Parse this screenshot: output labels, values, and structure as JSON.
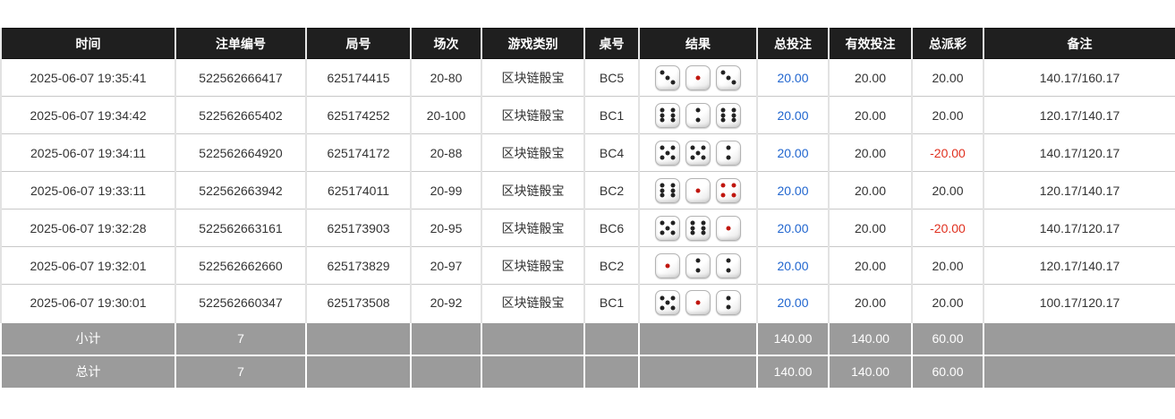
{
  "colors": {
    "header_bg": "#1f1f1f",
    "header_text": "#ffffff",
    "row_text": "#333333",
    "bet_total_link": "#2166cf",
    "negative_value": "#e0301f",
    "summary_bg": "#9b9b9b",
    "summary_text": "#ffffff",
    "dice_pip_black": "#222222",
    "dice_pip_red": "#c0170f"
  },
  "table": {
    "columns": [
      {
        "key": "time",
        "label": "时间"
      },
      {
        "key": "bet_id",
        "label": "注单编号"
      },
      {
        "key": "round_id",
        "label": "局号"
      },
      {
        "key": "session",
        "label": "场次"
      },
      {
        "key": "game_type",
        "label": "游戏类别"
      },
      {
        "key": "table_no",
        "label": "桌号"
      },
      {
        "key": "result",
        "label": "结果"
      },
      {
        "key": "bet_total",
        "label": "总投注"
      },
      {
        "key": "valid_bet",
        "label": "有效投注"
      },
      {
        "key": "payout_total",
        "label": "总派彩"
      },
      {
        "key": "remark",
        "label": "备注"
      }
    ],
    "rows": [
      {
        "time": "2025-06-07 19:35:41",
        "bet_id": "522562666417",
        "round_id": "625174415",
        "session": "20-80",
        "game_type": "区块链骰宝",
        "table_no": "BC5",
        "result": [
          3,
          1,
          3
        ],
        "bet_total": "20.00",
        "valid_bet": "20.00",
        "payout_total": "20.00",
        "remark": "140.17/160.17"
      },
      {
        "time": "2025-06-07 19:34:42",
        "bet_id": "522562665402",
        "round_id": "625174252",
        "session": "20-100",
        "game_type": "区块链骰宝",
        "table_no": "BC1",
        "result": [
          6,
          2,
          6
        ],
        "bet_total": "20.00",
        "valid_bet": "20.00",
        "payout_total": "20.00",
        "remark": "120.17/140.17"
      },
      {
        "time": "2025-06-07 19:34:11",
        "bet_id": "522562664920",
        "round_id": "625174172",
        "session": "20-88",
        "game_type": "区块链骰宝",
        "table_no": "BC4",
        "result": [
          5,
          5,
          2
        ],
        "bet_total": "20.00",
        "valid_bet": "20.00",
        "payout_total": "-20.00",
        "remark": "140.17/120.17"
      },
      {
        "time": "2025-06-07 19:33:11",
        "bet_id": "522562663942",
        "round_id": "625174011",
        "session": "20-99",
        "game_type": "区块链骰宝",
        "table_no": "BC2",
        "result": [
          6,
          1,
          4
        ],
        "bet_total": "20.00",
        "valid_bet": "20.00",
        "payout_total": "20.00",
        "remark": "120.17/140.17"
      },
      {
        "time": "2025-06-07 19:32:28",
        "bet_id": "522562663161",
        "round_id": "625173903",
        "session": "20-95",
        "game_type": "区块链骰宝",
        "table_no": "BC6",
        "result": [
          5,
          6,
          1
        ],
        "bet_total": "20.00",
        "valid_bet": "20.00",
        "payout_total": "-20.00",
        "remark": "140.17/120.17"
      },
      {
        "time": "2025-06-07 19:32:01",
        "bet_id": "522562662660",
        "round_id": "625173829",
        "session": "20-97",
        "game_type": "区块链骰宝",
        "table_no": "BC2",
        "result": [
          1,
          2,
          2
        ],
        "bet_total": "20.00",
        "valid_bet": "20.00",
        "payout_total": "20.00",
        "remark": "120.17/140.17"
      },
      {
        "time": "2025-06-07 19:30:01",
        "bet_id": "522562660347",
        "round_id": "625173508",
        "session": "20-92",
        "game_type": "区块链骰宝",
        "table_no": "BC1",
        "result": [
          5,
          1,
          2
        ],
        "bet_total": "20.00",
        "valid_bet": "20.00",
        "payout_total": "20.00",
        "remark": "100.17/120.17"
      }
    ],
    "summary_rows": [
      {
        "time": "小计",
        "bet_id": "7",
        "bet_total": "140.00",
        "valid_bet": "140.00",
        "payout_total": "60.00"
      },
      {
        "time": "总计",
        "bet_id": "7",
        "bet_total": "140.00",
        "valid_bet": "140.00",
        "payout_total": "60.00"
      }
    ]
  }
}
